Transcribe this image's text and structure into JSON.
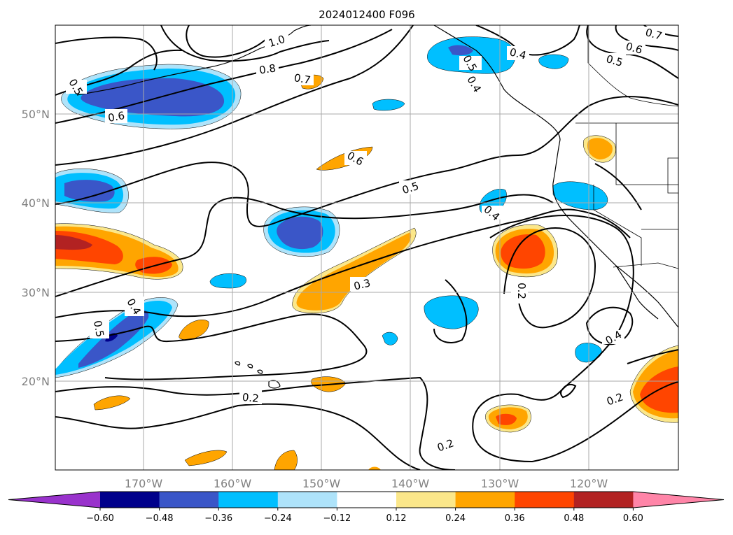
{
  "title": "2024012400 F096",
  "latitude_labels": [
    "50°N",
    "40°N",
    "30°N",
    "20°N"
  ],
  "longitude_labels": [
    "170°W",
    "160°W",
    "150°W",
    "140°W",
    "130°W",
    "120°W"
  ],
  "colorbar": {
    "tick_labels": [
      "−0.60",
      "−0.48",
      "−0.36",
      "−0.24",
      "−0.12",
      "0.12",
      "0.24",
      "0.36",
      "0.48",
      "0.60"
    ],
    "colors": [
      "#9932cc",
      "#00008b",
      "#3a56c8",
      "#00bfff",
      "#aee3fa",
      "#ffffff",
      "#fbe78a",
      "#ffa500",
      "#ff4500",
      "#b22222",
      "#ff85a8"
    ]
  },
  "contour_labels": [
    "1.0",
    "0.8",
    "0.7",
    "0.6",
    "0.5",
    "0.6",
    "0.5",
    "0.4",
    "0.5",
    "0.4",
    "0.3",
    "0.2",
    "0.2",
    "0.2",
    "0.4",
    "0.2",
    "0.4",
    "0.5",
    "0.6",
    "0.7",
    "0.4",
    "0.5"
  ]
}
